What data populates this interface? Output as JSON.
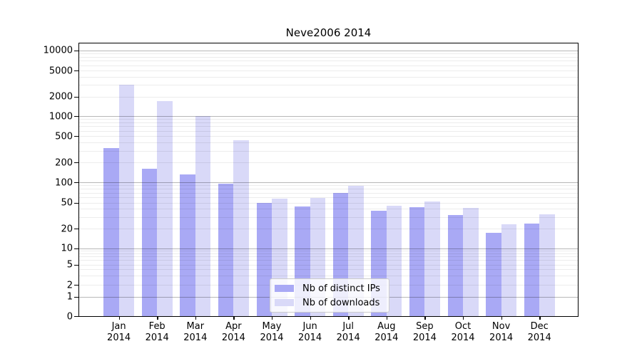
{
  "figure": {
    "background": "#ffffff"
  },
  "chart_data": {
    "type": "bar",
    "title": "Neve2006 2014",
    "categories": [
      "Jan 2014",
      "Feb 2014",
      "Mar 2014",
      "Apr 2014",
      "May 2014",
      "Jun 2014",
      "Jul 2014",
      "Aug 2014",
      "Sep 2014",
      "Oct 2014",
      "Nov 2014",
      "Dec 2014"
    ],
    "series": [
      {
        "name": "Nb of distinct IPs",
        "color": "#a9a9f5",
        "values": [
          330,
          160,
          130,
          96,
          50,
          44,
          69,
          37,
          43,
          32,
          17,
          24
        ]
      },
      {
        "name": "Nb of downloads",
        "color": "#d9d9f8",
        "values": [
          3000,
          1700,
          1000,
          430,
          57,
          59,
          89,
          45,
          52,
          41,
          23,
          33
        ]
      }
    ],
    "y_axis": {
      "scale": "log-like",
      "tick_values": [
        0,
        1,
        2,
        5,
        10,
        20,
        50,
        100,
        200,
        500,
        1000,
        2000,
        5000,
        10000
      ],
      "tick_labels": [
        "0",
        "1",
        "2",
        "5",
        "10",
        "20",
        "50",
        "100",
        "200",
        "500",
        "1000",
        "2000",
        "5000",
        "10000"
      ],
      "major_values": [
        1,
        10,
        100,
        1000,
        10000
      ]
    },
    "xlabel": "",
    "ylabel": "",
    "grid": {
      "major_color": "rgba(0,0,0,0.28)",
      "minor_color": "rgba(0,0,0,0.075)"
    },
    "legend_position": "lower center"
  }
}
